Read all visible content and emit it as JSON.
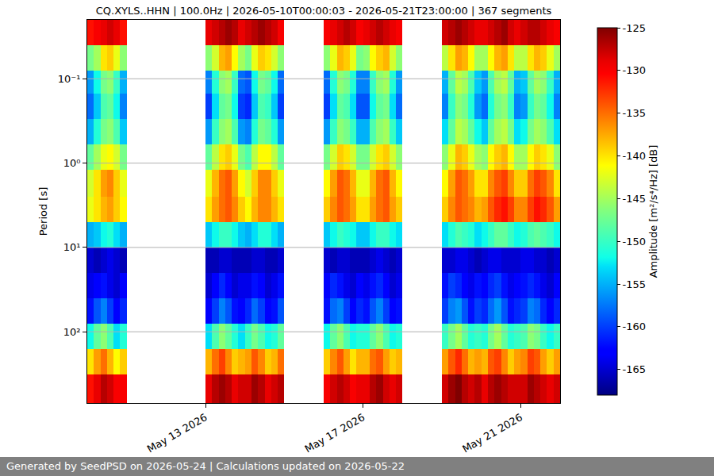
{
  "chart_data": {
    "type": "heatmap",
    "title": "CQ.XYLS..HHN | 100.0Hz | 2026-05-10T00:00:03 - 2026-05-21T23:00:00 | 367 segments",
    "footer": "Generated by SeedPSD on 2026-05-24 | Calculations updated on 2026-05-22",
    "y_label": "Period [s]",
    "colorbar_label": "Amplitude [m²/s⁴/Hz] [dB]",
    "log": "y",
    "grid": true,
    "xlim": [
      "2026-05-10 00:00",
      "2026-05-22 00:00"
    ],
    "xticks": [
      {
        "value": "2026-05-13",
        "label": "May 13 2026"
      },
      {
        "value": "2026-05-17",
        "label": "May 17 2026"
      },
      {
        "value": "2026-05-21",
        "label": "May 21 2026"
      }
    ],
    "ylim": [
      700,
      0.02
    ],
    "yticks": [
      {
        "value": 0.1,
        "label": "10⁻¹"
      },
      {
        "value": 1,
        "label": "10⁰"
      },
      {
        "value": 10,
        "label": "10¹"
      },
      {
        "value": 100,
        "label": "10²"
      }
    ],
    "zlim": [
      -168,
      -125
    ],
    "zticks": [
      -165,
      -160,
      -155,
      -150,
      -145,
      -140,
      -135,
      -130,
      -125
    ],
    "x_edges": [
      "2026-05-10 00:00",
      "2026-05-10 04:00",
      "2026-05-10 08:00",
      "2026-05-10 12:00",
      "2026-05-10 16:00",
      "2026-05-10 20:00",
      "2026-05-11 00:00",
      "2026-05-11 04:00",
      "2026-05-11 08:00",
      "2026-05-11 12:00",
      "2026-05-11 16:00",
      "2026-05-11 20:00",
      "2026-05-12 00:00",
      "2026-05-12 04:00",
      "2026-05-12 08:00",
      "2026-05-12 12:00",
      "2026-05-12 16:00",
      "2026-05-12 20:00",
      "2026-05-13 00:00",
      "2026-05-13 04:00",
      "2026-05-13 08:00",
      "2026-05-13 12:00",
      "2026-05-13 16:00",
      "2026-05-13 20:00",
      "2026-05-14 00:00",
      "2026-05-14 04:00",
      "2026-05-14 08:00",
      "2026-05-14 12:00",
      "2026-05-14 16:00",
      "2026-05-14 20:00",
      "2026-05-15 00:00",
      "2026-05-15 04:00",
      "2026-05-15 08:00",
      "2026-05-15 12:00",
      "2026-05-15 16:00",
      "2026-05-15 20:00",
      "2026-05-16 00:00",
      "2026-05-16 04:00",
      "2026-05-16 08:00",
      "2026-05-16 12:00",
      "2026-05-16 16:00",
      "2026-05-16 20:00",
      "2026-05-17 00:00",
      "2026-05-17 04:00",
      "2026-05-17 08:00",
      "2026-05-17 12:00",
      "2026-05-17 16:00",
      "2026-05-17 20:00",
      "2026-05-18 00:00",
      "2026-05-18 04:00",
      "2026-05-18 08:00",
      "2026-05-18 12:00",
      "2026-05-18 16:00",
      "2026-05-18 20:00",
      "2026-05-19 00:00",
      "2026-05-19 04:00",
      "2026-05-19 08:00",
      "2026-05-19 12:00",
      "2026-05-19 16:00",
      "2026-05-19 20:00",
      "2026-05-20 00:00",
      "2026-05-20 04:00",
      "2026-05-20 08:00",
      "2026-05-20 12:00",
      "2026-05-20 16:00",
      "2026-05-20 20:00",
      "2026-05-21 00:00",
      "2026-05-21 04:00",
      "2026-05-21 08:00",
      "2026-05-21 12:00",
      "2026-05-21 16:00",
      "2026-05-21 20:00",
      "2026-05-22 00:00"
    ],
    "y_edges": [
      0.02,
      0.04,
      0.08,
      0.15,
      0.3,
      0.6,
      1.2,
      2.5,
      5,
      10,
      20,
      40,
      80,
      160,
      320,
      700
    ],
    "cells": [
      [
        -131,
        -130,
        -129,
        -128,
        -129,
        -131,
        null,
        null,
        null,
        null,
        null,
        null,
        null,
        null,
        null,
        null,
        null,
        null,
        -129,
        -128,
        -127,
        -126,
        -127,
        -129,
        -128,
        -127,
        -126,
        -127,
        -128,
        -130,
        null,
        null,
        null,
        null,
        null,
        null,
        -130,
        -129,
        -128,
        -127,
        -128,
        -130,
        -129,
        -128,
        -127,
        -128,
        -129,
        -130,
        null,
        null,
        null,
        null,
        null,
        null,
        -128,
        -127,
        -126,
        -127,
        -128,
        -129,
        -129,
        -128,
        -127,
        -126,
        -128,
        -129,
        -128,
        -127,
        -127,
        -128,
        -129,
        -130
      ],
      [
        -147,
        -145,
        -140,
        -139,
        -142,
        -146,
        null,
        null,
        null,
        null,
        null,
        null,
        null,
        null,
        null,
        null,
        null,
        null,
        -146,
        -143,
        -138,
        -137,
        -141,
        -145,
        -147,
        -142,
        -139,
        -140,
        -143,
        -146,
        null,
        null,
        null,
        null,
        null,
        null,
        -146,
        -142,
        -138,
        -139,
        -142,
        -147,
        -146,
        -141,
        -139,
        -138,
        -143,
        -146,
        null,
        null,
        null,
        null,
        null,
        null,
        -144,
        -140,
        -137,
        -138,
        -141,
        -145,
        -145,
        -141,
        -138,
        -137,
        -140,
        -144,
        -144,
        -140,
        -138,
        -139,
        -142,
        -145
      ],
      [
        -156,
        -152,
        -147,
        -146,
        -150,
        -155,
        null,
        null,
        null,
        null,
        null,
        null,
        null,
        null,
        null,
        null,
        null,
        null,
        -157,
        -151,
        -146,
        -145,
        -150,
        -158,
        -159,
        -152,
        -147,
        -148,
        -152,
        -158,
        null,
        null,
        null,
        null,
        null,
        null,
        -158,
        -151,
        -146,
        -147,
        -151,
        -157,
        -157,
        -150,
        -146,
        -145,
        -151,
        -156,
        null,
        null,
        null,
        null,
        null,
        null,
        -155,
        -148,
        -144,
        -145,
        -149,
        -154,
        -156,
        -149,
        -145,
        -144,
        -148,
        -155,
        -154,
        -148,
        -145,
        -146,
        -150,
        -155
      ],
      [
        -158,
        -154,
        -149,
        -148,
        -152,
        -157,
        null,
        null,
        null,
        null,
        null,
        null,
        null,
        null,
        null,
        null,
        null,
        null,
        -160,
        -153,
        -148,
        -147,
        -152,
        -160,
        -161,
        -154,
        -149,
        -150,
        -154,
        -160,
        null,
        null,
        null,
        null,
        null,
        null,
        -160,
        -153,
        -148,
        -149,
        -153,
        -159,
        -159,
        -152,
        -148,
        -147,
        -153,
        -158,
        null,
        null,
        null,
        null,
        null,
        null,
        -157,
        -150,
        -146,
        -147,
        -151,
        -156,
        -158,
        -151,
        -147,
        -146,
        -150,
        -157,
        -156,
        -150,
        -147,
        -148,
        -152,
        -157
      ],
      [
        -155,
        -151,
        -147,
        -146,
        -149,
        -154,
        null,
        null,
        null,
        null,
        null,
        null,
        null,
        null,
        null,
        null,
        null,
        null,
        -156,
        -150,
        -146,
        -145,
        -149,
        -156,
        -157,
        -151,
        -147,
        -148,
        -151,
        -156,
        null,
        null,
        null,
        null,
        null,
        null,
        -156,
        -150,
        -146,
        -147,
        -150,
        -155,
        -155,
        -149,
        -146,
        -145,
        -150,
        -154,
        null,
        null,
        null,
        null,
        null,
        null,
        -153,
        -148,
        -144,
        -145,
        -148,
        -152,
        -154,
        -148,
        -145,
        -144,
        -147,
        -153,
        -152,
        -147,
        -145,
        -146,
        -149,
        -153
      ],
      [
        -148,
        -145,
        -142,
        -141,
        -143,
        -147,
        null,
        null,
        null,
        null,
        null,
        null,
        null,
        null,
        null,
        null,
        null,
        null,
        -148,
        -144,
        -140,
        -139,
        -142,
        -147,
        -149,
        -144,
        -141,
        -141,
        -144,
        -148,
        null,
        null,
        null,
        null,
        null,
        null,
        -147,
        -143,
        -139,
        -140,
        -143,
        -147,
        -147,
        -143,
        -140,
        -139,
        -143,
        -146,
        null,
        null,
        null,
        null,
        null,
        null,
        -146,
        -142,
        -138,
        -139,
        -142,
        -145,
        -146,
        -141,
        -139,
        -138,
        -141,
        -145,
        -145,
        -141,
        -139,
        -140,
        -142,
        -146
      ],
      [
        -143,
        -140,
        -137,
        -136,
        -139,
        -142,
        null,
        null,
        null,
        null,
        null,
        null,
        null,
        null,
        null,
        null,
        null,
        null,
        -142,
        -138,
        -135,
        -134,
        -137,
        -141,
        -143,
        -139,
        -136,
        -136,
        -139,
        -142,
        null,
        null,
        null,
        null,
        null,
        null,
        -141,
        -137,
        -134,
        -135,
        -138,
        -142,
        -142,
        -138,
        -135,
        -134,
        -138,
        -141,
        null,
        null,
        null,
        null,
        null,
        null,
        -141,
        -137,
        -134,
        -135,
        -137,
        -140,
        -140,
        -136,
        -134,
        -133,
        -136,
        -139,
        -139,
        -135,
        -133,
        -134,
        -136,
        -140
      ],
      [
        -142,
        -140,
        -138,
        -137,
        -139,
        -141,
        null,
        null,
        null,
        null,
        null,
        null,
        null,
        null,
        null,
        null,
        null,
        null,
        -140,
        -137,
        -135,
        -134,
        -136,
        -139,
        -141,
        -138,
        -136,
        -136,
        -138,
        -140,
        null,
        null,
        null,
        null,
        null,
        null,
        -139,
        -136,
        -134,
        -135,
        -137,
        -140,
        -140,
        -137,
        -135,
        -134,
        -137,
        -139,
        null,
        null,
        null,
        null,
        null,
        null,
        -139,
        -136,
        -134,
        -135,
        -136,
        -138,
        -137,
        -134,
        -132,
        -131,
        -133,
        -136,
        -136,
        -133,
        -131,
        -132,
        -134,
        -137
      ],
      [
        -155,
        -154,
        -152,
        -151,
        -153,
        -155,
        null,
        null,
        null,
        null,
        null,
        null,
        null,
        null,
        null,
        null,
        null,
        null,
        -154,
        -152,
        -150,
        -150,
        -152,
        -154,
        -155,
        -153,
        -151,
        -151,
        -153,
        -155,
        null,
        null,
        null,
        null,
        null,
        null,
        -154,
        -152,
        -150,
        -151,
        -152,
        -154,
        -154,
        -152,
        -150,
        -150,
        -152,
        -153,
        null,
        null,
        null,
        null,
        null,
        null,
        -153,
        -151,
        -149,
        -150,
        -151,
        -153,
        -152,
        -150,
        -148,
        -148,
        -150,
        -152,
        -151,
        -149,
        -148,
        -149,
        -150,
        -152
      ],
      [
        -165,
        -166,
        -165,
        -164,
        -165,
        -166,
        null,
        null,
        null,
        null,
        null,
        null,
        null,
        null,
        null,
        null,
        null,
        null,
        -166,
        -166,
        -165,
        -165,
        -166,
        -166,
        -166,
        -165,
        -165,
        -166,
        -166,
        -165,
        null,
        null,
        null,
        null,
        null,
        null,
        -165,
        -166,
        -165,
        -165,
        -166,
        -166,
        -166,
        -165,
        -164,
        -165,
        -166,
        -165,
        null,
        null,
        null,
        null,
        null,
        null,
        -165,
        -165,
        -164,
        -164,
        -165,
        -166,
        -165,
        -164,
        -164,
        -165,
        -165,
        -165,
        -164,
        -164,
        -165,
        -165,
        -166,
        -165
      ],
      [
        -164,
        -163,
        -162,
        -164,
        -165,
        -163,
        null,
        null,
        null,
        null,
        null,
        null,
        null,
        null,
        null,
        null,
        null,
        null,
        -165,
        -163,
        -161,
        -163,
        -165,
        -164,
        -164,
        -162,
        -163,
        -165,
        -164,
        -162,
        null,
        null,
        null,
        null,
        null,
        null,
        -163,
        -161,
        -162,
        -164,
        -165,
        -163,
        -164,
        -162,
        -161,
        -163,
        -165,
        -164,
        null,
        null,
        null,
        null,
        null,
        null,
        -162,
        -160,
        -161,
        -163,
        -164,
        -162,
        -163,
        -161,
        -160,
        -162,
        -164,
        -163,
        -162,
        -161,
        -162,
        -164,
        -165,
        -163
      ],
      [
        -162,
        -159,
        -157,
        -160,
        -163,
        -161,
        null,
        null,
        null,
        null,
        null,
        null,
        null,
        null,
        null,
        null,
        null,
        null,
        -163,
        -160,
        -157,
        -159,
        -162,
        -163,
        -161,
        -158,
        -160,
        -163,
        -162,
        -159,
        null,
        null,
        null,
        null,
        null,
        null,
        -162,
        -158,
        -157,
        -160,
        -163,
        -161,
        -162,
        -159,
        -157,
        -160,
        -163,
        -162,
        null,
        null,
        null,
        null,
        null,
        null,
        -160,
        -157,
        -156,
        -159,
        -162,
        -160,
        -161,
        -158,
        -156,
        -159,
        -162,
        -161,
        -160,
        -157,
        -158,
        -161,
        -163,
        -161
      ],
      [
        -152,
        -148,
        -146,
        -149,
        -153,
        -151,
        null,
        null,
        null,
        null,
        null,
        null,
        null,
        null,
        null,
        null,
        null,
        null,
        -153,
        -149,
        -146,
        -148,
        -151,
        -153,
        -150,
        -147,
        -149,
        -152,
        -151,
        -148,
        null,
        null,
        null,
        null,
        null,
        null,
        -152,
        -148,
        -146,
        -149,
        -152,
        -151,
        -151,
        -148,
        -146,
        -149,
        -152,
        -151,
        null,
        null,
        null,
        null,
        null,
        null,
        -150,
        -147,
        -145,
        -148,
        -151,
        -150,
        -151,
        -147,
        -145,
        -148,
        -151,
        -150,
        -149,
        -146,
        -147,
        -150,
        -152,
        -150
      ],
      [
        -140,
        -137,
        -135,
        -138,
        -141,
        -139,
        null,
        null,
        null,
        null,
        null,
        null,
        null,
        null,
        null,
        null,
        null,
        null,
        -138,
        -135,
        -133,
        -136,
        -139,
        -138,
        -137,
        -134,
        -136,
        -139,
        -138,
        -135,
        null,
        null,
        null,
        null,
        null,
        null,
        -139,
        -136,
        -134,
        -137,
        -140,
        -138,
        -138,
        -135,
        -134,
        -137,
        -139,
        -138,
        null,
        null,
        null,
        null,
        null,
        null,
        -137,
        -134,
        -132,
        -135,
        -138,
        -137,
        -138,
        -134,
        -133,
        -136,
        -139,
        -137,
        -136,
        -133,
        -134,
        -137,
        -139,
        -137
      ],
      [
        -131,
        -129,
        -127,
        -128,
        -130,
        -130,
        null,
        null,
        null,
        null,
        null,
        null,
        null,
        null,
        null,
        null,
        null,
        null,
        -129,
        -127,
        -126,
        -127,
        -129,
        -128,
        -128,
        -126,
        -127,
        -129,
        -128,
        -127,
        null,
        null,
        null,
        null,
        null,
        null,
        -130,
        -128,
        -127,
        -128,
        -130,
        -129,
        -129,
        -127,
        -126,
        -128,
        -129,
        -128,
        null,
        null,
        null,
        null,
        null,
        null,
        -128,
        -126,
        -125,
        -127,
        -128,
        -127,
        -129,
        -127,
        -126,
        -127,
        -128,
        -128,
        -128,
        -126,
        -127,
        -128,
        -129,
        -128
      ]
    ]
  }
}
